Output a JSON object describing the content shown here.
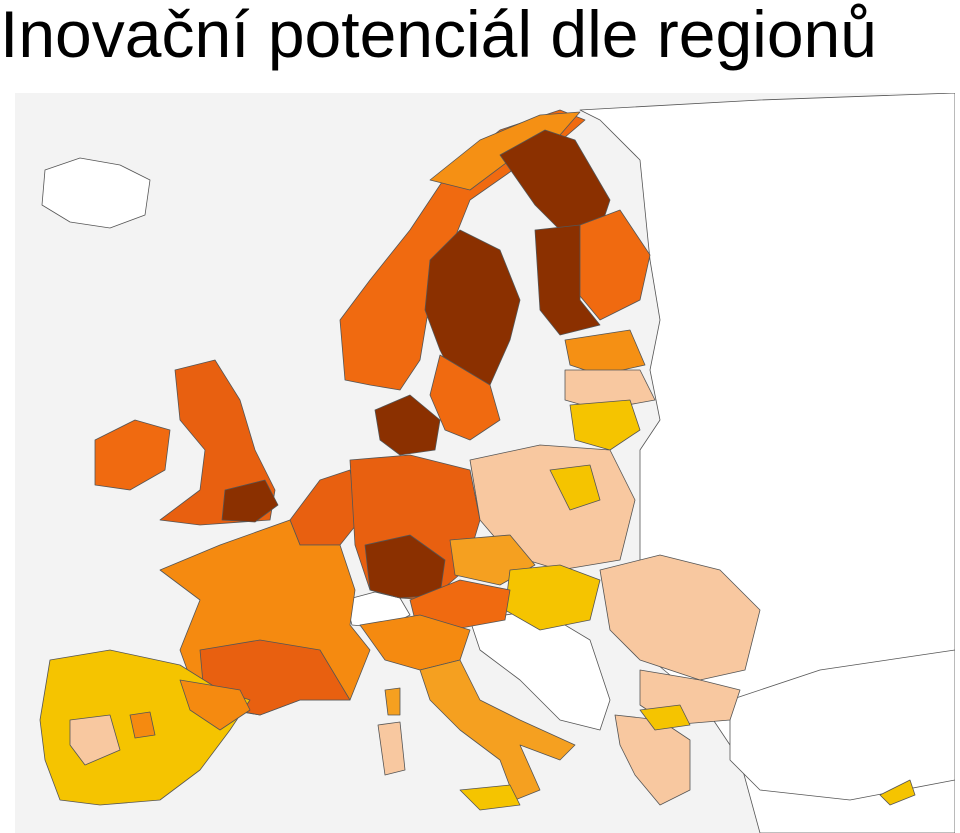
{
  "title": "Inovační potenciál dle regionů"
}
